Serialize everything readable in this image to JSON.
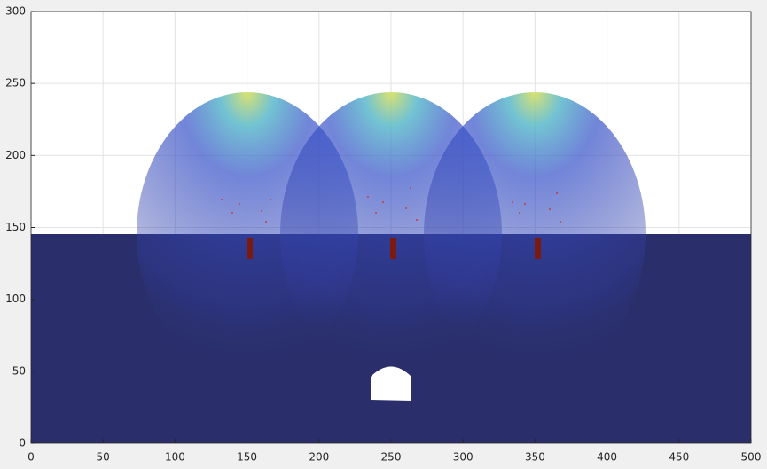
{
  "chart_data": {
    "type": "scatter",
    "xlim": [
      0,
      500
    ],
    "ylim": [
      0,
      300
    ],
    "xticks": [
      0,
      50,
      100,
      150,
      200,
      250,
      300,
      350,
      400,
      450,
      500
    ],
    "yticks": [
      0,
      50,
      100,
      150,
      200,
      250,
      300
    ],
    "grid": true
  }
}
